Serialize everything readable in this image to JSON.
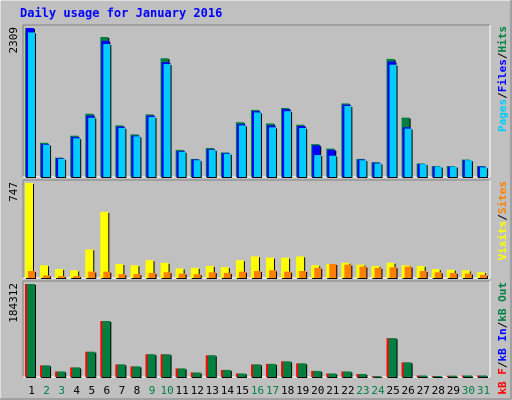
{
  "title": "Daily usage for January 2016",
  "colors": {
    "background": "#c0c0c0",
    "title": "#0000ff",
    "pages": "#00ccff",
    "files": "#0000ff",
    "hits": "#008040",
    "visits": "#ffff00",
    "sites": "#ff8000",
    "kbout": "#008040",
    "kbin": "#0000ff",
    "kbf": "#ff0000",
    "weekend": "#008040",
    "weekday": "#000000"
  },
  "chart_data": {
    "type": "bar",
    "title": "Daily usage for January 2016",
    "categories": [
      "1",
      "2",
      "3",
      "4",
      "5",
      "6",
      "7",
      "8",
      "9",
      "10",
      "11",
      "12",
      "13",
      "14",
      "15",
      "16",
      "17",
      "18",
      "19",
      "20",
      "21",
      "22",
      "23",
      "24",
      "25",
      "26",
      "27",
      "28",
      "29",
      "30",
      "31"
    ],
    "weekend_days": [
      "2",
      "3",
      "9",
      "10",
      "16",
      "17",
      "23",
      "24",
      "30",
      "31"
    ],
    "panels": [
      {
        "name": "usage",
        "ymax": 2309,
        "ymax_label": "2309",
        "legend": [
          {
            "label": "Pages",
            "color": "#00ccff"
          },
          {
            "label": "Files",
            "color": "#0000ff"
          },
          {
            "label": "Hits",
            "color": "#008040"
          }
        ],
        "series": [
          {
            "name": "Hits",
            "values": [
              2309,
              530,
              300,
              640,
              980,
              2170,
              800,
              660,
              970,
              1840,
              420,
              280,
              450,
              380,
              850,
              1040,
              830,
              1070,
              810,
              510,
              440,
              1140,
              280,
              230,
              1830,
              920,
              210,
              170,
              170,
              270,
              170
            ]
          },
          {
            "name": "Files",
            "values": [
              2309,
              510,
              290,
              620,
              950,
              2110,
              780,
              640,
              950,
              1780,
              400,
              270,
              430,
              370,
              820,
              1020,
              800,
              1050,
              790,
              490,
              420,
              1120,
              270,
              220,
              1790,
              770,
              200,
              160,
              160,
              260,
              160
            ]
          },
          {
            "name": "Pages",
            "values": [
              2240,
              500,
              280,
              600,
              920,
              2060,
              760,
              630,
              930,
              1750,
              390,
              260,
              420,
              360,
              800,
              1000,
              770,
              1020,
              760,
              340,
              330,
              1100,
              260,
              210,
              1740,
              750,
              200,
              160,
              160,
              260,
              150
            ]
          }
        ]
      },
      {
        "name": "visitors",
        "ymax": 747,
        "ymax_label": "747",
        "legend": [
          {
            "label": "Visits",
            "color": "#ffff00"
          },
          {
            "label": "Sites",
            "color": "#ff8000"
          }
        ],
        "series": [
          {
            "name": "Visits",
            "values": [
              747,
              100,
              70,
              60,
              225,
              520,
              110,
              100,
              140,
              120,
              75,
              80,
              95,
              85,
              140,
              170,
              160,
              160,
              170,
              100,
              110,
              120,
              105,
              95,
              120,
              100,
              95,
              70,
              65,
              60,
              45
            ]
          },
          {
            "name": "Sites",
            "values": [
              55,
              20,
              15,
              15,
              50,
              50,
              30,
              30,
              40,
              45,
              35,
              30,
              45,
              40,
              50,
              55,
              60,
              50,
              55,
              80,
              110,
              105,
              90,
              80,
              85,
              90,
              55,
              45,
              40,
              35,
              25
            ]
          }
        ]
      },
      {
        "name": "traffic",
        "ymax": 184312,
        "ymax_label": "184312",
        "legend": [
          {
            "label": "kB F",
            "color": "#ff0000"
          },
          {
            "label": "kB In",
            "color": "#0000ff"
          },
          {
            "label": "kB Out",
            "color": "#008040"
          }
        ],
        "series": [
          {
            "name": "kB F",
            "values": [
              184312,
              23000,
              11000,
              19000,
              50000,
              111000,
              25000,
              21000,
              45000,
              45000,
              17000,
              9000,
              43000,
              14000,
              7000,
              25000,
              26000,
              31000,
              27000,
              12000,
              7000,
              11000,
              6000,
              1500,
              77000,
              29000,
              3000,
              2000,
              2500,
              3000,
              3000
            ]
          },
          {
            "name": "kB Out",
            "values": [
              184312,
              23000,
              11000,
              19000,
              50000,
              111000,
              25000,
              21000,
              45000,
              45000,
              17000,
              9000,
              43000,
              14000,
              7000,
              25000,
              26000,
              31000,
              27000,
              12000,
              7000,
              11000,
              6000,
              1500,
              77000,
              29000,
              3000,
              2000,
              2500,
              3000,
              3000
            ]
          }
        ]
      }
    ]
  }
}
